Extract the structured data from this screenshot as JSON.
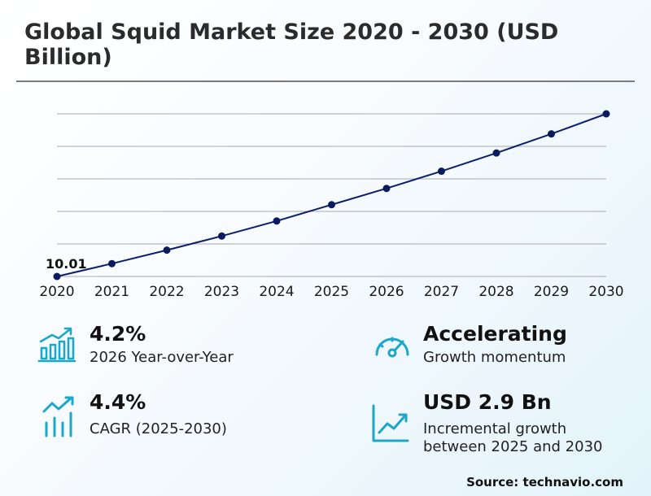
{
  "page": {
    "title": "Global Squid Market Size 2020 - 2030 (USD Billion)"
  },
  "chart_data": {
    "type": "line",
    "title": "Global Squid Market Size 2020 - 2030 (USD Billion)",
    "x": [
      2020,
      2021,
      2022,
      2023,
      2024,
      2025,
      2026,
      2027,
      2028,
      2029,
      2030
    ],
    "series": [
      {
        "values": [
          10.01,
          10.42,
          10.85,
          11.3,
          11.78,
          12.3,
          12.82,
          13.37,
          13.95,
          14.56,
          15.2
        ]
      }
    ],
    "data_labels": [
      {
        "index": 0,
        "text": "10.01"
      }
    ],
    "ylim": [
      10.01,
      15.2
    ],
    "grid": true,
    "line_color": "#0b1f6e",
    "marker_color": "#0b1a5c",
    "grid_color": "#a9a9a9"
  },
  "stats": [
    {
      "value": "4.2%",
      "desc": [
        "2026 Year-over-Year"
      ],
      "icon": "bar-chart-growth-icon"
    },
    {
      "value": "Accelerating",
      "desc": [
        "Growth momentum"
      ],
      "icon": "speedometer-icon"
    },
    {
      "value": "4.4%",
      "desc": [
        "CAGR (2025-2030)"
      ],
      "icon": "trend-bars-icon"
    },
    {
      "value": "USD 2.9 Bn",
      "desc": [
        "Incremental growth",
        "between 2025 and 2030"
      ],
      "icon": "line-chart-up-icon"
    }
  ],
  "icon_color": "#1aa7c9",
  "source": "Source: technavio.com"
}
